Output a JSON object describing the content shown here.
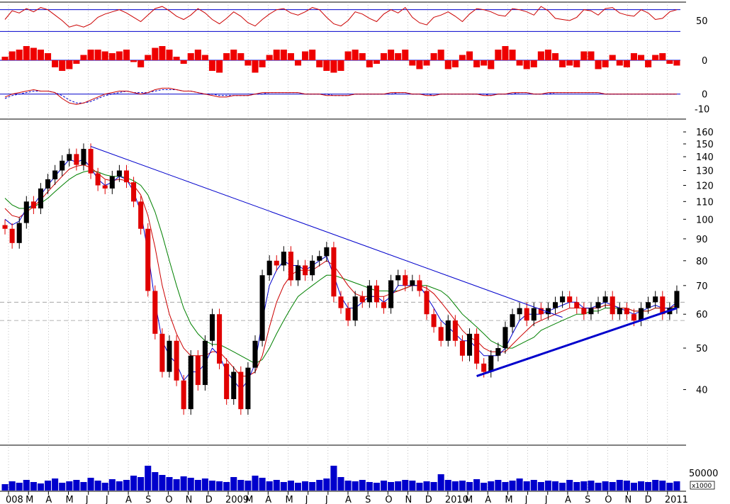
{
  "chart_data": {
    "type": "candlestick",
    "colors": {
      "bull": "#000000",
      "bear": "#e00000",
      "ma_fast": "#0000cc",
      "ma_mid": "#cc0000",
      "ma_slow": "#008000",
      "trendline": "#0000cc",
      "volume": "#0000cc",
      "rsi": "#cc0000",
      "histogram": "#ee0000",
      "grid": "#999999"
    },
    "panels": {
      "rsi": {
        "tick_labels": [
          "50"
        ],
        "upper_level": 70,
        "lower_level": 30,
        "ylim": [
          20,
          80
        ],
        "values": [
          52,
          68,
          64,
          72,
          66,
          74,
          70,
          60,
          50,
          38,
          42,
          38,
          44,
          56,
          62,
          66,
          70,
          64,
          56,
          48,
          60,
          72,
          76,
          68,
          58,
          52,
          60,
          72,
          64,
          52,
          44,
          54,
          66,
          58,
          46,
          40,
          52,
          62,
          70,
          72,
          64,
          60,
          66,
          74,
          70,
          56,
          44,
          40,
          50,
          66,
          62,
          54,
          48,
          62,
          70,
          64,
          74,
          56,
          46,
          42,
          56,
          60,
          66,
          58,
          48,
          62,
          72,
          70,
          66,
          60,
          58,
          72,
          70,
          66,
          60,
          76,
          68,
          54,
          52,
          50,
          56,
          70,
          68,
          60,
          72,
          74,
          64,
          60,
          58,
          70,
          64,
          52,
          54,
          66,
          70
        ]
      },
      "momentum_histogram": {
        "tick_labels": [
          "0"
        ],
        "ylim": [
          -10,
          10
        ],
        "values": [
          2,
          5,
          6,
          8,
          7,
          6,
          4,
          -4,
          -6,
          -5,
          -2,
          3,
          6,
          6,
          5,
          4,
          5,
          6,
          -1,
          -4,
          3,
          7,
          8,
          6,
          2,
          -2,
          4,
          6,
          3,
          -6,
          -7,
          4,
          6,
          4,
          -3,
          -7,
          -4,
          3,
          6,
          6,
          4,
          -3,
          5,
          6,
          -4,
          -6,
          -7,
          -6,
          5,
          6,
          4,
          -4,
          -2,
          4,
          6,
          4,
          6,
          -3,
          -5,
          -3,
          4,
          6,
          -5,
          -4,
          3,
          5,
          -4,
          -3,
          -5,
          6,
          8,
          6,
          -3,
          -5,
          -4,
          5,
          6,
          4,
          -4,
          -3,
          -4,
          5,
          5,
          -5,
          -4,
          3,
          -3,
          -4,
          4,
          3,
          -4,
          3,
          4,
          -2,
          -3
        ]
      },
      "macd": {
        "tick_labels": [
          "0",
          "-10"
        ],
        "ylim": [
          -14,
          8
        ],
        "values": [
          -2,
          0,
          1,
          2,
          3,
          2,
          2,
          1,
          -3,
          -6,
          -7,
          -6,
          -4,
          -2,
          0,
          1,
          2,
          2,
          1,
          0,
          1,
          3,
          4,
          4,
          3,
          2,
          2,
          1,
          0,
          -1,
          -2,
          -2,
          -1,
          -1,
          -1,
          0,
          1,
          1,
          1,
          1,
          1,
          1,
          0,
          0,
          0,
          -1,
          -1,
          -1,
          -1,
          0,
          0,
          0,
          0,
          0,
          1,
          1,
          1,
          0,
          0,
          -1,
          -1,
          0,
          0,
          0,
          0,
          0,
          0,
          -1,
          -1,
          0,
          0,
          1,
          1,
          1,
          0,
          0,
          1,
          1,
          1,
          1,
          1,
          1,
          1,
          1,
          0,
          0,
          0,
          0,
          0,
          0,
          0,
          0,
          0,
          0,
          0
        ],
        "signal": [
          -3,
          -1,
          0,
          1,
          2,
          2,
          2,
          1,
          -1,
          -4,
          -6,
          -6,
          -5,
          -3,
          -1,
          0,
          1,
          2,
          1,
          1,
          1,
          2,
          3,
          3,
          3,
          2,
          2,
          1,
          0,
          0,
          -1,
          -1,
          -1,
          -1,
          -1,
          0,
          0,
          1,
          1,
          1,
          1,
          1,
          0,
          0,
          0,
          0,
          -1,
          -1,
          -1,
          0,
          0,
          0,
          0,
          0,
          0,
          1,
          1,
          0,
          0,
          0,
          -1,
          0,
          0,
          0,
          0,
          0,
          0,
          0,
          -1,
          0,
          0,
          0,
          1,
          1,
          0,
          0,
          0,
          1,
          1,
          1,
          1,
          1,
          1,
          1,
          0,
          0,
          0,
          0,
          0,
          0,
          0,
          0,
          0,
          0,
          0
        ]
      },
      "price": {
        "scale": "log",
        "ylim": [
          33,
          165
        ],
        "tick_labels": [
          "160",
          "150",
          "140",
          "130",
          "120",
          "110",
          "100",
          "90",
          "80",
          "70",
          "60",
          "50",
          "40"
        ],
        "dashed_levels": [
          64,
          58
        ],
        "x_labels": [
          "008",
          "M",
          "A",
          "M",
          "J",
          "J",
          "A",
          "S",
          "O",
          "N",
          "D",
          "2009",
          "M",
          "A",
          "M",
          "J",
          "J",
          "A",
          "S",
          "O",
          "N",
          "D",
          "2010",
          "M",
          "A",
          "M",
          "J",
          "J",
          "A",
          "S",
          "O",
          "N",
          "D",
          "2011"
        ],
        "close": [
          95,
          88,
          98,
          110,
          106,
          118,
          124,
          130,
          137,
          142,
          134,
          146,
          128,
          120,
          118,
          126,
          130,
          122,
          110,
          95,
          68,
          54,
          44,
          52,
          42,
          36,
          48,
          41,
          52,
          60,
          46,
          38,
          44,
          36,
          45,
          52,
          74,
          80,
          78,
          84,
          72,
          78,
          74,
          80,
          82,
          86,
          66,
          62,
          58,
          66,
          64,
          70,
          64,
          62,
          72,
          74,
          70,
          72,
          68,
          60,
          56,
          52,
          58,
          52,
          48,
          54,
          46,
          44,
          48,
          50,
          56,
          60,
          62,
          58,
          62,
          60,
          62,
          64,
          66,
          64,
          62,
          60,
          62,
          64,
          66,
          60,
          62,
          60,
          58,
          62,
          64,
          66,
          60,
          62,
          68
        ],
        "ma_fast": [
          100,
          97,
          99,
          106,
          108,
          114,
          120,
          126,
          132,
          138,
          136,
          138,
          132,
          124,
          120,
          122,
          126,
          124,
          116,
          104,
          84,
          64,
          52,
          48,
          46,
          42,
          44,
          44,
          46,
          50,
          48,
          44,
          42,
          40,
          42,
          46,
          58,
          70,
          76,
          80,
          78,
          78,
          76,
          78,
          80,
          82,
          74,
          66,
          62,
          62,
          64,
          66,
          66,
          64,
          66,
          70,
          70,
          70,
          70,
          66,
          62,
          58,
          56,
          54,
          52,
          52,
          50,
          48,
          48,
          48,
          50,
          54,
          58,
          60,
          60,
          60,
          61,
          62,
          63,
          64,
          64,
          62,
          62,
          63,
          64,
          63,
          62,
          61,
          60,
          61,
          62,
          63,
          62,
          62,
          64
        ],
        "ma_mid": [
          106,
          102,
          101,
          104,
          107,
          111,
          116,
          121,
          126,
          131,
          133,
          134,
          132,
          128,
          124,
          123,
          124,
          123,
          120,
          114,
          102,
          86,
          70,
          60,
          54,
          50,
          48,
          48,
          48,
          49,
          49,
          47,
          45,
          43,
          43,
          44,
          48,
          56,
          64,
          70,
          74,
          76,
          76,
          76,
          78,
          80,
          78,
          74,
          70,
          67,
          66,
          66,
          66,
          66,
          67,
          68,
          69,
          70,
          70,
          69,
          67,
          64,
          61,
          58,
          55,
          53,
          52,
          50,
          49,
          49,
          49,
          51,
          53,
          55,
          57,
          58,
          59,
          60,
          61,
          62,
          62,
          62,
          62,
          62,
          63,
          63,
          62,
          62,
          61,
          61,
          61,
          62,
          62,
          62,
          63
        ],
        "ma_slow": [
          112,
          108,
          106,
          106,
          107,
          109,
          112,
          116,
          120,
          124,
          127,
          129,
          130,
          129,
          127,
          126,
          126,
          125,
          123,
          120,
          114,
          104,
          92,
          80,
          70,
          62,
          57,
          54,
          52,
          51,
          51,
          50,
          49,
          48,
          47,
          46,
          47,
          50,
          54,
          58,
          62,
          66,
          68,
          70,
          72,
          74,
          74,
          73,
          72,
          71,
          70,
          69,
          68,
          68,
          68,
          68,
          69,
          70,
          70,
          70,
          69,
          68,
          66,
          63,
          60,
          58,
          56,
          54,
          52,
          51,
          50,
          50,
          51,
          52,
          53,
          55,
          56,
          57,
          58,
          59,
          60,
          60,
          61,
          61,
          62,
          62,
          62,
          62,
          61,
          61,
          61,
          62,
          62,
          62,
          62
        ],
        "trendlines": [
          {
            "from": [
              12,
              148
            ],
            "to": [
              78,
              59
            ]
          },
          {
            "from": [
              66,
              43
            ],
            "to": [
              94,
              62
            ]
          }
        ]
      },
      "volume": {
        "tick_labels": [
          "50000"
        ],
        "unit_label": "x1000",
        "ylim": [
          0,
          120000
        ],
        "values": [
          18000,
          26000,
          22000,
          30000,
          24000,
          20000,
          28000,
          34000,
          22000,
          26000,
          30000,
          24000,
          36000,
          28000,
          22000,
          32000,
          26000,
          30000,
          42000,
          38000,
          70000,
          52000,
          44000,
          38000,
          32000,
          40000,
          36000,
          30000,
          34000,
          28000,
          26000,
          24000,
          38000,
          30000,
          28000,
          42000,
          36000,
          26000,
          30000,
          24000,
          28000,
          22000,
          26000,
          24000,
          30000,
          34000,
          70000,
          38000,
          28000,
          26000,
          30000,
          24000,
          22000,
          28000,
          24000,
          26000,
          30000,
          28000,
          22000,
          26000,
          24000,
          46000,
          30000,
          26000,
          28000,
          24000,
          32000,
          22000,
          26000,
          30000,
          24000,
          28000,
          34000,
          26000,
          30000,
          24000,
          28000,
          26000,
          22000,
          30000,
          24000,
          26000,
          28000,
          22000,
          26000,
          24000,
          30000,
          28000,
          22000,
          26000,
          24000,
          30000,
          28000,
          22000,
          26000
        ]
      }
    }
  }
}
